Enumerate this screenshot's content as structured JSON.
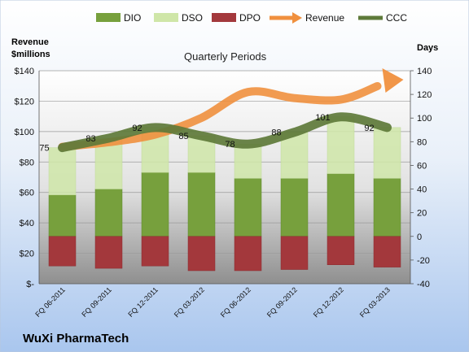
{
  "chart_data": {
    "type": "bar",
    "title": "",
    "subtitle": "Quarterly Periods",
    "company": "WuXi PharmaTech",
    "left_axis": {
      "label_line1": "Revenue",
      "label_line2": "$millions",
      "ylim": [
        0,
        140
      ],
      "ticks": [
        "$-",
        "$20",
        "$40",
        "$60",
        "$80",
        "$100",
        "$120",
        "$140"
      ]
    },
    "right_axis": {
      "label": "Days",
      "ylim": [
        -40,
        140
      ],
      "ticks": [
        "-40",
        "-20",
        "0",
        "20",
        "40",
        "60",
        "80",
        "100",
        "120",
        "140"
      ]
    },
    "categories": [
      "FQ 06-2011",
      "FQ 09-2011",
      "FQ 12-2011",
      "FQ 03-2012",
      "FQ 06-2012",
      "FQ 09-2012",
      "FQ 12-2012",
      "FQ 03-2013"
    ],
    "legend_placement": "top",
    "legend": [
      {
        "name": "DIO",
        "kind": "bar",
        "color": "#77a03d"
      },
      {
        "name": "DSO",
        "kind": "bar",
        "color": "#cfe6a8"
      },
      {
        "name": "DPO",
        "kind": "bar",
        "color": "#a3383c"
      },
      {
        "name": "Revenue",
        "kind": "arrow",
        "color": "#f0903e"
      },
      {
        "name": "CCC",
        "kind": "line",
        "color": "#5e7a3a"
      }
    ],
    "series": [
      {
        "name": "DIO",
        "axis": "right",
        "color": "#77a03d",
        "values": [
          35,
          40,
          54,
          54,
          49,
          49,
          53,
          49
        ]
      },
      {
        "name": "DSO",
        "axis": "right",
        "color": "#cfe6a8",
        "values": [
          40,
          43,
          38,
          31,
          29,
          39,
          48,
          43
        ]
      },
      {
        "name": "DPO",
        "axis": "right",
        "color": "#a3383c",
        "values": [
          -25,
          -27,
          -25,
          -29,
          -29,
          -28,
          -24,
          -26
        ]
      },
      {
        "name": "Revenue",
        "axis": "left",
        "color": "#f0903e",
        "values": [
          90,
          93,
          98,
          109,
          126,
          122,
          121,
          132
        ]
      },
      {
        "name": "CCC",
        "axis": "right",
        "color": "#5e7a3a",
        "values": [
          75,
          83,
          92,
          85,
          78,
          88,
          101,
          92
        ]
      }
    ],
    "ccc_labels": [
      "75",
      "83",
      "92",
      "85",
      "78",
      "88",
      "101",
      "92"
    ]
  }
}
